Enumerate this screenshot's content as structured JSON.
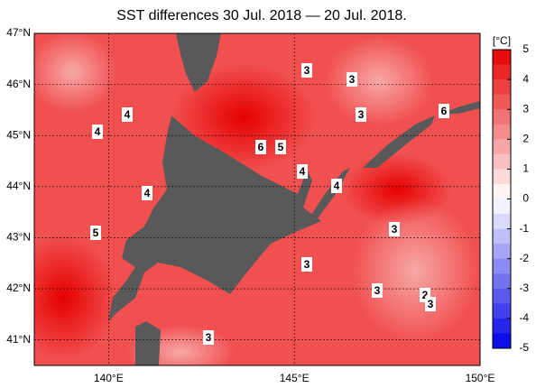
{
  "map": {
    "title": "SST differences 30 Jul. 2018 — 20 Jul. 2018.",
    "xlim": [
      138,
      150
    ],
    "ylim": [
      40.5,
      47
    ],
    "lat_ticks": [
      {
        "value": 47,
        "label": "47°N"
      },
      {
        "value": 46,
        "label": "46°N"
      },
      {
        "value": 45,
        "label": "45°N"
      },
      {
        "value": 44,
        "label": "44°N"
      },
      {
        "value": 43,
        "label": "43°N"
      },
      {
        "value": 42,
        "label": "42°N"
      },
      {
        "value": 41,
        "label": "41°N"
      }
    ],
    "lon_ticks": [
      {
        "value": 140,
        "label": "140°E"
      },
      {
        "value": 145,
        "label": "145°E"
      },
      {
        "value": 150,
        "label": "150°E"
      }
    ],
    "contour_labels": [
      3,
      3,
      3,
      6,
      4,
      4,
      6,
      5,
      4,
      4,
      4,
      5,
      3,
      3,
      3,
      2,
      3,
      3
    ]
  },
  "colorbar": {
    "unit": "[°C]",
    "lim": [
      -5,
      5
    ],
    "ticks": [
      5,
      4,
      3,
      2,
      1,
      0,
      -1,
      -2,
      -3,
      -4,
      -5
    ]
  }
}
